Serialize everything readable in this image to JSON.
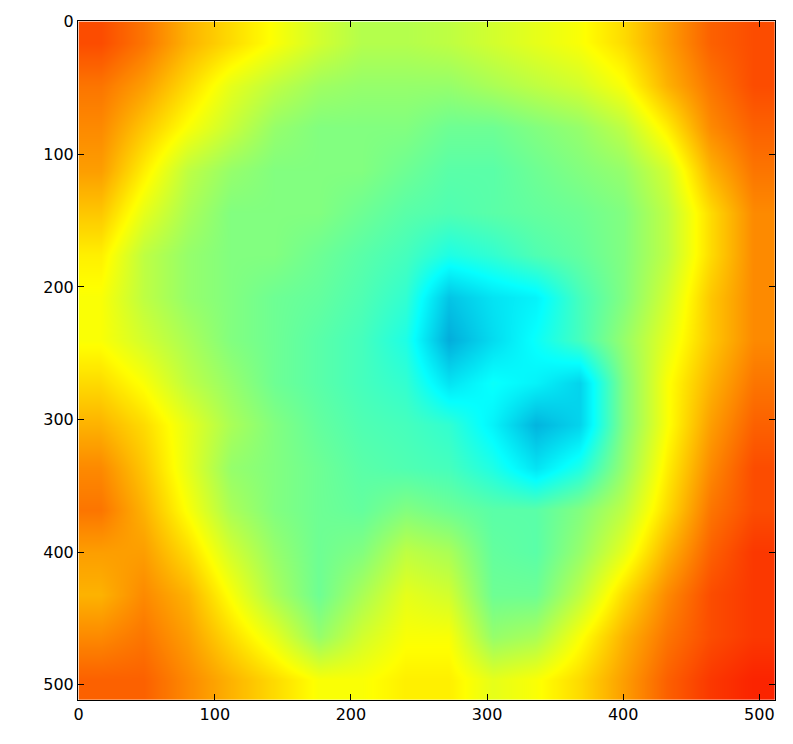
{
  "chart_data": {
    "type": "heatmap",
    "color": "jet",
    "x": [
      16,
      48,
      80,
      112,
      144,
      176,
      208,
      240,
      272,
      304,
      336,
      368,
      400,
      432,
      464,
      496
    ],
    "y": [
      16,
      48,
      80,
      112,
      144,
      176,
      208,
      240,
      272,
      304,
      336,
      368,
      400,
      432,
      464,
      496
    ],
    "z": [
      [
        0.8,
        0.76,
        0.7,
        0.66,
        0.62,
        0.58,
        0.55,
        0.55,
        0.56,
        0.58,
        0.6,
        0.62,
        0.66,
        0.72,
        0.78,
        0.8
      ],
      [
        0.76,
        0.72,
        0.66,
        0.6,
        0.56,
        0.53,
        0.52,
        0.52,
        0.52,
        0.54,
        0.56,
        0.58,
        0.62,
        0.7,
        0.76,
        0.8
      ],
      [
        0.74,
        0.68,
        0.62,
        0.57,
        0.52,
        0.5,
        0.5,
        0.5,
        0.48,
        0.48,
        0.5,
        0.52,
        0.56,
        0.64,
        0.74,
        0.78
      ],
      [
        0.72,
        0.64,
        0.56,
        0.52,
        0.5,
        0.5,
        0.5,
        0.48,
        0.46,
        0.46,
        0.48,
        0.5,
        0.52,
        0.58,
        0.7,
        0.76
      ],
      [
        0.68,
        0.6,
        0.54,
        0.5,
        0.5,
        0.5,
        0.48,
        0.46,
        0.45,
        0.46,
        0.47,
        0.48,
        0.5,
        0.56,
        0.66,
        0.74
      ],
      [
        0.64,
        0.56,
        0.52,
        0.5,
        0.5,
        0.48,
        0.46,
        0.44,
        0.4,
        0.42,
        0.45,
        0.47,
        0.5,
        0.56,
        0.66,
        0.74
      ],
      [
        0.62,
        0.56,
        0.52,
        0.5,
        0.48,
        0.47,
        0.45,
        0.42,
        0.3,
        0.34,
        0.36,
        0.44,
        0.5,
        0.58,
        0.68,
        0.74
      ],
      [
        0.62,
        0.58,
        0.54,
        0.5,
        0.48,
        0.46,
        0.44,
        0.4,
        0.27,
        0.33,
        0.38,
        0.44,
        0.52,
        0.6,
        0.68,
        0.74
      ],
      [
        0.66,
        0.62,
        0.56,
        0.52,
        0.48,
        0.46,
        0.44,
        0.42,
        0.34,
        0.38,
        0.36,
        0.32,
        0.5,
        0.62,
        0.7,
        0.76
      ],
      [
        0.7,
        0.66,
        0.6,
        0.54,
        0.5,
        0.47,
        0.45,
        0.44,
        0.42,
        0.36,
        0.28,
        0.32,
        0.5,
        0.62,
        0.72,
        0.78
      ],
      [
        0.74,
        0.68,
        0.6,
        0.52,
        0.5,
        0.48,
        0.46,
        0.45,
        0.44,
        0.4,
        0.34,
        0.4,
        0.52,
        0.64,
        0.74,
        0.8
      ],
      [
        0.76,
        0.7,
        0.62,
        0.54,
        0.5,
        0.48,
        0.47,
        0.5,
        0.48,
        0.46,
        0.46,
        0.5,
        0.56,
        0.66,
        0.76,
        0.8
      ],
      [
        0.72,
        0.72,
        0.66,
        0.58,
        0.52,
        0.48,
        0.5,
        0.56,
        0.54,
        0.47,
        0.46,
        0.52,
        0.6,
        0.7,
        0.78,
        0.82
      ],
      [
        0.7,
        0.74,
        0.7,
        0.62,
        0.54,
        0.48,
        0.54,
        0.6,
        0.58,
        0.48,
        0.48,
        0.56,
        0.66,
        0.74,
        0.8,
        0.82
      ],
      [
        0.74,
        0.76,
        0.72,
        0.66,
        0.6,
        0.52,
        0.58,
        0.62,
        0.62,
        0.52,
        0.54,
        0.62,
        0.7,
        0.76,
        0.8,
        0.82
      ],
      [
        0.78,
        0.78,
        0.74,
        0.7,
        0.66,
        0.62,
        0.62,
        0.64,
        0.64,
        0.6,
        0.62,
        0.66,
        0.72,
        0.78,
        0.82,
        0.84
      ]
    ],
    "zlim": [
      0,
      1
    ],
    "xlim": [
      -0.5,
      511.5
    ],
    "ylim": [
      511.5,
      -0.5
    ],
    "xticks": [
      0,
      100,
      200,
      300,
      400,
      500
    ],
    "yticks": [
      0,
      100,
      200,
      300,
      400,
      500
    ],
    "grid": false
  }
}
